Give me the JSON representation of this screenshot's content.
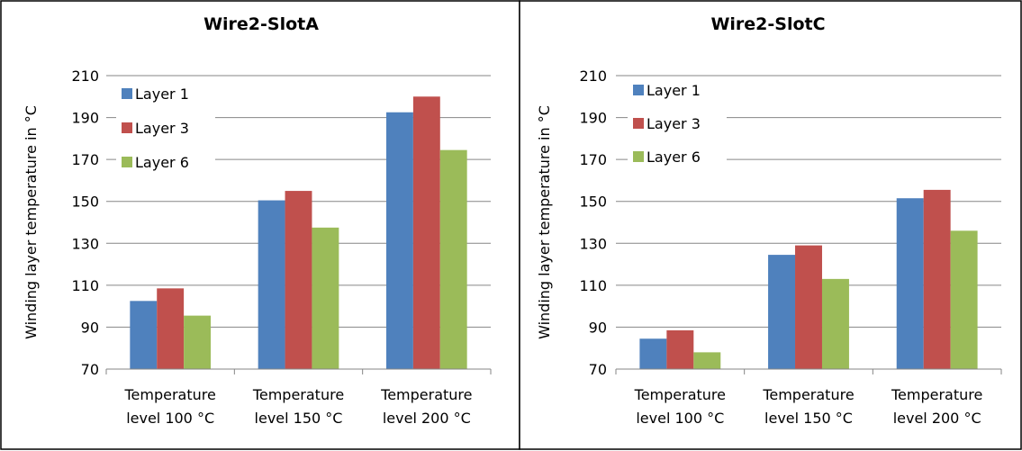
{
  "chart_data": [
    {
      "type": "bar",
      "title": "Wire2-SlotA",
      "ylabel": "Winding layer temperature in °C",
      "xlabel": "",
      "ylim": [
        70,
        210
      ],
      "yticks": [
        70,
        90,
        110,
        130,
        150,
        170,
        190,
        210
      ],
      "grid": true,
      "legend_position": "top-left",
      "categories": [
        [
          "Temperature",
          "level 100 °C"
        ],
        [
          "Temperature",
          "level 150 °C"
        ],
        [
          "Temperature",
          "level 200 °C"
        ]
      ],
      "series": [
        {
          "name": "Layer 1",
          "color": "#4F81BD",
          "values": [
            102.5,
            150.5,
            192.5
          ]
        },
        {
          "name": "Layer 3",
          "color": "#C0504D",
          "values": [
            108.5,
            155,
            200
          ]
        },
        {
          "name": "Layer 6",
          "color": "#9BBB59",
          "values": [
            95.5,
            137.5,
            174.5
          ]
        }
      ]
    },
    {
      "type": "bar",
      "title": "Wire2-SlotC",
      "ylabel": "Winding layer temperature in °C",
      "xlabel": "",
      "ylim": [
        70,
        210
      ],
      "yticks": [
        70,
        90,
        110,
        130,
        150,
        170,
        190,
        210
      ],
      "grid": true,
      "legend_position": "top-left",
      "categories": [
        [
          "Temperature",
          "level 100 °C"
        ],
        [
          "Temperature",
          "level 150 °C"
        ],
        [
          "Temperature",
          "level 200 °C"
        ]
      ],
      "series": [
        {
          "name": "Layer 1",
          "color": "#4F81BD",
          "values": [
            84.5,
            124.5,
            151.5
          ]
        },
        {
          "name": "Layer 3",
          "color": "#C0504D",
          "values": [
            88.5,
            129,
            155.5
          ]
        },
        {
          "name": "Layer 6",
          "color": "#9BBB59",
          "values": [
            78,
            113,
            136
          ]
        }
      ]
    }
  ]
}
